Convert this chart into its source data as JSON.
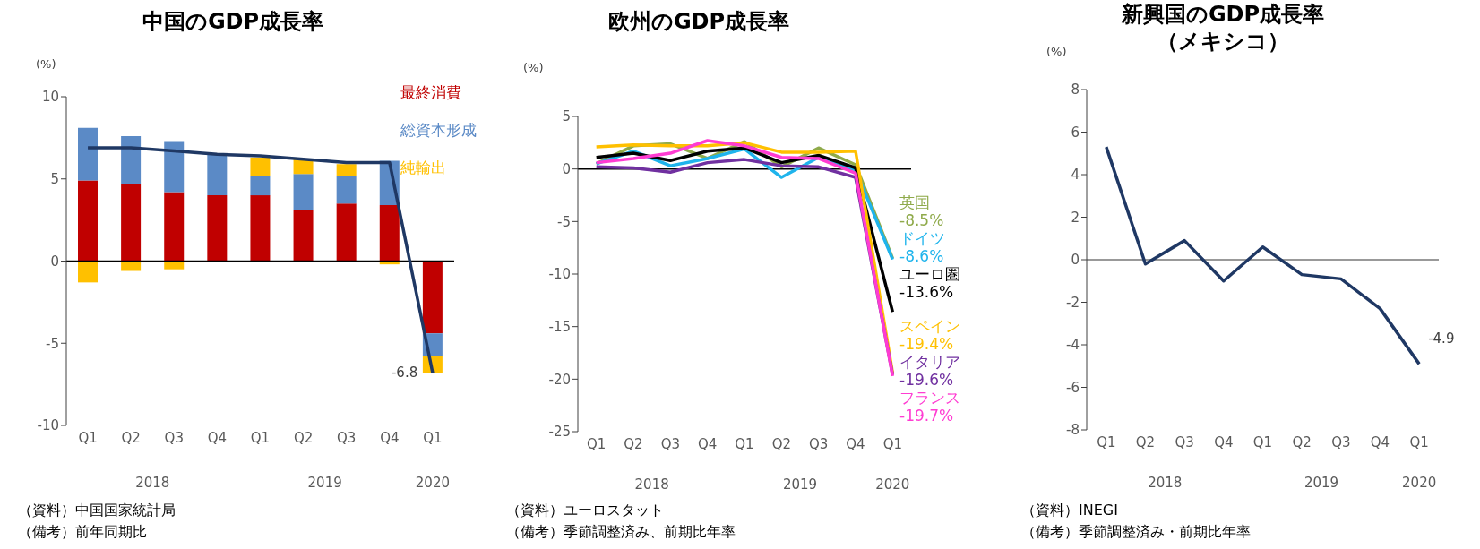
{
  "chart_data": [
    {
      "type": "bar",
      "title": "中国のGDP成長率",
      "ylabel": "(%)",
      "categories": [
        "Q1",
        "Q2",
        "Q3",
        "Q4",
        "Q1",
        "Q2",
        "Q3",
        "Q4",
        "Q1"
      ],
      "stacked": true,
      "legend": "top right",
      "ylim": [
        -10,
        10
      ],
      "yticks": [
        -10,
        -5,
        0,
        5,
        10
      ],
      "series": [
        {
          "name": "最終消費",
          "color": "#c00000",
          "values": [
            4.9,
            4.7,
            4.2,
            4.0,
            4.0,
            3.1,
            3.5,
            3.4,
            -4.4
          ]
        },
        {
          "name": "総資本形成",
          "color": "#5b8ac6",
          "values": [
            3.2,
            2.9,
            3.1,
            2.5,
            1.2,
            2.2,
            1.7,
            2.7,
            -1.4
          ]
        },
        {
          "name": "純輸出",
          "color": "#ffc000",
          "values": [
            -1.3,
            -0.6,
            -0.5,
            0,
            1.1,
            0.9,
            0.7,
            -0.2,
            -1.0
          ]
        },
        {
          "type": "line",
          "color": "#1f3864",
          "values": [
            6.9,
            6.9,
            6.7,
            6.5,
            6.4,
            6.2,
            6.0,
            6.0,
            -6.8
          ],
          "value_labels": [
            null,
            null,
            null,
            null,
            null,
            null,
            null,
            null,
            "-6.8"
          ]
        }
      ],
      "annotations": [
        "2018",
        "2019",
        "2020",
        "（資料）中国国家統計局",
        "（備考）前年同期比"
      ]
    },
    {
      "type": "line",
      "title": "欧州のGDP成長率",
      "ylabel": "(%)",
      "categories": [
        "Q1",
        "Q2",
        "Q3",
        "Q4",
        "Q1",
        "Q2",
        "Q3",
        "Q4",
        "Q1"
      ],
      "legend": "right",
      "ylim": [
        -25,
        5
      ],
      "yticks": [
        -25,
        -20,
        -15,
        -10,
        -5,
        0,
        5
      ],
      "series": [
        {
          "name": "英国",
          "color": "#8faa4a",
          "values": [
            0.5,
            2.2,
            2.4,
            1.0,
            2.6,
            0.2,
            2.0,
            0.4,
            -8.5
          ],
          "value_labels": [
            null,
            null,
            null,
            null,
            null,
            null,
            null,
            null,
            "-8.5%"
          ]
        },
        {
          "name": "ドイツ",
          "color": "#1fb4ec",
          "values": [
            0.5,
            1.7,
            0.3,
            1.0,
            1.9,
            -0.8,
            1.1,
            -0.1,
            -8.6
          ],
          "value_labels": [
            null,
            null,
            null,
            null,
            null,
            null,
            null,
            null,
            "-8.6%"
          ]
        },
        {
          "name": "ユーロ圏",
          "color": "#000000",
          "values": [
            1.1,
            1.5,
            0.8,
            1.7,
            2.0,
            0.6,
            1.3,
            0.1,
            -13.6
          ],
          "value_labels": [
            null,
            null,
            null,
            null,
            null,
            null,
            null,
            null,
            "-13.6%"
          ]
        },
        {
          "name": "スペイン",
          "color": "#ffc000",
          "values": [
            2.1,
            2.3,
            2.2,
            2.2,
            2.5,
            1.6,
            1.6,
            1.7,
            -19.4
          ],
          "value_labels": [
            null,
            null,
            null,
            null,
            null,
            null,
            null,
            null,
            "-19.4%"
          ]
        },
        {
          "name": "イタリア",
          "color": "#7030a0",
          "values": [
            0.2,
            0.1,
            -0.3,
            0.6,
            0.9,
            0.3,
            0.2,
            -0.8,
            -19.6
          ],
          "value_labels": [
            null,
            null,
            null,
            null,
            null,
            null,
            null,
            null,
            "-19.6%"
          ]
        },
        {
          "name": "フランス",
          "color": "#ff3cd2",
          "values": [
            0.6,
            1.0,
            1.5,
            2.7,
            2.2,
            1.1,
            1.0,
            -0.4,
            -19.7
          ],
          "value_labels": [
            null,
            null,
            null,
            null,
            null,
            null,
            null,
            null,
            "-19.7%"
          ]
        }
      ],
      "annotations": [
        "2018",
        "2019",
        "2020",
        "（資料）ユーロスタット",
        "（備考）季節調整済み、前期比年率"
      ]
    },
    {
      "type": "line",
      "title": "新興国のGDP成長率",
      "subtitle": "（メキシコ）",
      "ylabel": "(%)",
      "categories": [
        "Q1",
        "Q2",
        "Q3",
        "Q4",
        "Q1",
        "Q2",
        "Q3",
        "Q4",
        "Q1"
      ],
      "ylim": [
        -8,
        8
      ],
      "yticks": [
        -8,
        -6,
        -4,
        -2,
        0,
        2,
        4,
        6,
        8
      ],
      "series": [
        {
          "color": "#1f3864",
          "values": [
            5.3,
            -0.2,
            0.9,
            -1.0,
            0.6,
            -0.7,
            -0.9,
            -2.3,
            -4.9
          ],
          "value_labels": [
            null,
            null,
            null,
            null,
            null,
            null,
            null,
            null,
            "-4.9"
          ]
        }
      ],
      "annotations": [
        "2018",
        "2019",
        "2020",
        "（資料）INEGI",
        "（備考）季節調整済み・前期比年率"
      ]
    }
  ]
}
